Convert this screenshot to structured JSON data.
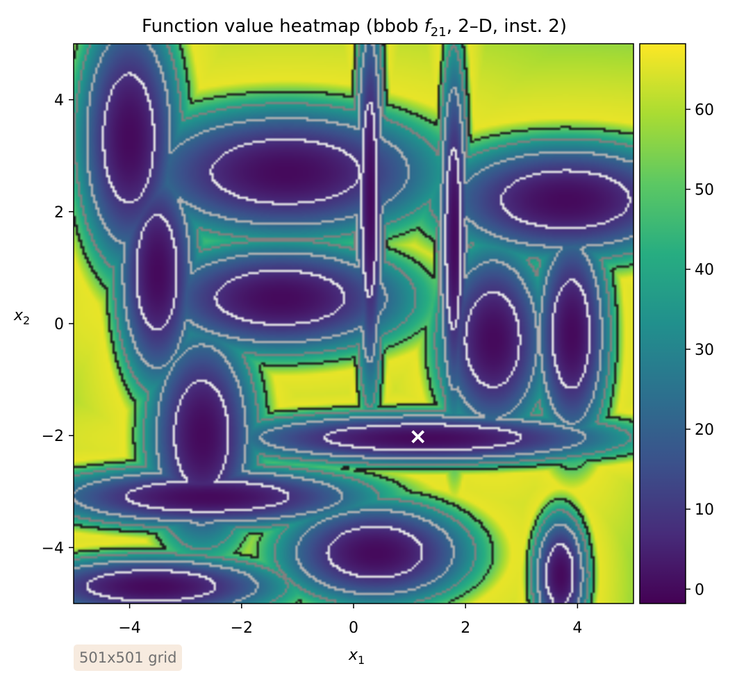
{
  "chart_data": {
    "type": "heatmap",
    "title_prefix": "Function value heatmap (bbob ",
    "title_func": "f",
    "title_func_sub": "21",
    "title_suffix": ", 2–D, inst. 2)",
    "xlabel": "x",
    "xlabel_sub": "1",
    "ylabel": "x",
    "ylabel_sub": "2",
    "xlim": [
      -5,
      5
    ],
    "ylim": [
      -5,
      5
    ],
    "xticks": [
      -4,
      -2,
      0,
      2,
      4
    ],
    "yticks": [
      -4,
      -2,
      0,
      2,
      4
    ],
    "xtick_labels": [
      "−4",
      "−2",
      "0",
      "2",
      "4"
    ],
    "ytick_labels": [
      "−4",
      "−2",
      "0",
      "2",
      "4"
    ],
    "colorbar": {
      "range": [
        -1.8,
        68.2
      ],
      "ticks": [
        0,
        10,
        20,
        30,
        40,
        50,
        60
      ],
      "tick_labels": [
        "0",
        "10",
        "20",
        "30",
        "40",
        "50",
        "60"
      ],
      "colormap": "viridis"
    },
    "optimum_marker": {
      "x": 1.15,
      "y": -2.02,
      "symbol": "x",
      "color": "#ffffff"
    },
    "valleys": [
      {
        "x": 1.25,
        "y": -2.05,
        "a": 2.9,
        "b": 0.38
      },
      {
        "x": -1.2,
        "y": 2.7,
        "a": 2.2,
        "b": 0.95
      },
      {
        "x": 3.8,
        "y": 2.2,
        "a": 1.9,
        "b": 0.85
      },
      {
        "x": -1.3,
        "y": 0.45,
        "a": 1.9,
        "b": 0.8
      },
      {
        "x": -4.0,
        "y": 3.3,
        "a": 0.75,
        "b": 1.9
      },
      {
        "x": -3.5,
        "y": 0.9,
        "a": 0.6,
        "b": 1.7
      },
      {
        "x": -2.7,
        "y": -2.0,
        "a": 0.8,
        "b": 1.6
      },
      {
        "x": 2.5,
        "y": -0.3,
        "a": 0.8,
        "b": 1.4
      },
      {
        "x": 3.9,
        "y": -0.2,
        "a": 0.55,
        "b": 1.6
      },
      {
        "x": -2.6,
        "y": -3.1,
        "a": 2.4,
        "b": 0.45
      },
      {
        "x": 0.4,
        "y": -4.1,
        "a": 1.4,
        "b": 0.75
      },
      {
        "x": -3.6,
        "y": -4.7,
        "a": 1.9,
        "b": 0.45
      },
      {
        "x": 3.7,
        "y": -4.5,
        "a": 0.4,
        "b": 0.9
      },
      {
        "x": 0.3,
        "y": 2.2,
        "a": 0.22,
        "b": 2.9
      },
      {
        "x": 1.8,
        "y": 1.5,
        "a": 0.22,
        "b": 2.7
      }
    ],
    "contour_levels": [
      8,
      22,
      36,
      50
    ],
    "contour_colors": [
      "#e8e8e8",
      "#b4b4b4",
      "#808080",
      "#1e1e1e"
    ]
  },
  "annotation": {
    "grid_label": "501x501 grid"
  }
}
